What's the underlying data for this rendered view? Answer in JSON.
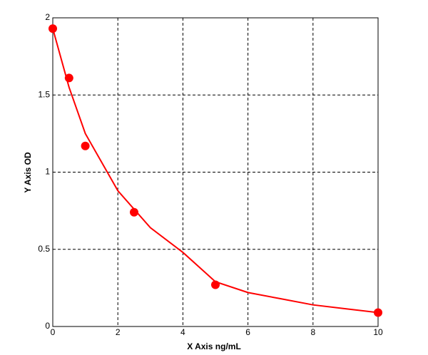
{
  "chart_data": {
    "type": "scatter",
    "xlabel": "X Axis ng/mL",
    "ylabel": "Y Axis OD",
    "xlim": [
      0,
      10
    ],
    "ylim": [
      0,
      2
    ],
    "xticks": [
      0,
      2,
      4,
      6,
      8,
      10
    ],
    "yticks": [
      0,
      0.5,
      1,
      1.5,
      2
    ],
    "grid": true,
    "series": [
      {
        "kind": "scatter",
        "color": "#ff0000",
        "x": [
          0,
          0.5,
          1,
          2.5,
          5,
          10
        ],
        "values": [
          1.93,
          1.61,
          1.17,
          0.74,
          0.27,
          0.09
        ]
      },
      {
        "kind": "line",
        "color": "#ff0000",
        "x": [
          0,
          0.5,
          1,
          2,
          3,
          4,
          5,
          6,
          7,
          8,
          9,
          10
        ],
        "values": [
          1.93,
          1.55,
          1.25,
          0.88,
          0.64,
          0.48,
          0.29,
          0.22,
          0.18,
          0.14,
          0.115,
          0.09
        ]
      }
    ]
  }
}
